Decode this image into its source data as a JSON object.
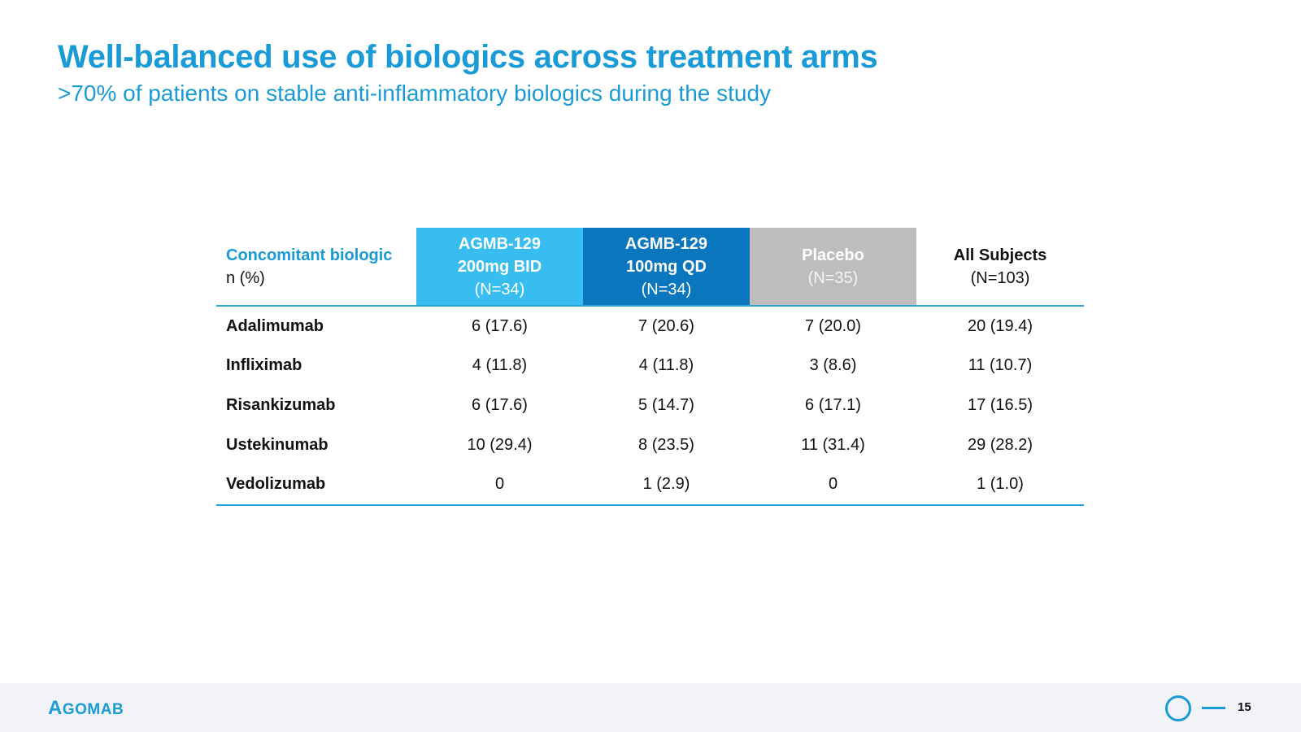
{
  "slide": {
    "title": "Well-balanced use of biologics across treatment arms",
    "subtitle": ">70% of patients on stable anti-inflammatory biologics during the study"
  },
  "table": {
    "header": {
      "label_title": "Concomitant biologic",
      "label_unit": "n (%)",
      "columns": [
        {
          "line1": "AGMB-129",
          "line2": "200mg BID",
          "line3": "(N=34)",
          "color": "#38bdf0"
        },
        {
          "line1": "AGMB-129",
          "line2": "100mg QD",
          "line3": "(N=34)",
          "color": "#0a76bd"
        },
        {
          "line1": "Placebo",
          "line2": "(N=35)",
          "color": "#bdbdbd"
        },
        {
          "line1": "All Subjects",
          "line2": "(N=103)"
        }
      ]
    },
    "rows": [
      {
        "name": "Adalimumab",
        "values": [
          "6 (17.6)",
          "7 (20.6)",
          "7 (20.0)",
          "20 (19.4)"
        ]
      },
      {
        "name": "Infliximab",
        "values": [
          "4 (11.8)",
          "4 (11.8)",
          "3 (8.6)",
          "11 (10.7)"
        ]
      },
      {
        "name": "Risankizumab",
        "values": [
          "6 (17.6)",
          "5 (14.7)",
          "6 (17.1)",
          "17 (16.5)"
        ]
      },
      {
        "name": "Ustekinumab",
        "values": [
          "10 (29.4)",
          "8 (23.5)",
          "11 (31.4)",
          "29 (28.2)"
        ]
      },
      {
        "name": "Vedolizumab",
        "values": [
          "0",
          "1 (2.9)",
          "0",
          "1 (1.0)"
        ]
      }
    ]
  },
  "footer": {
    "logo_first": "A",
    "logo_rest": "GOMAB",
    "logo_text": "AGOMAB",
    "page_number": "15",
    "accent_color": "#1a9ad6",
    "icons": [
      "ring-icon",
      "dash-icon"
    ]
  }
}
